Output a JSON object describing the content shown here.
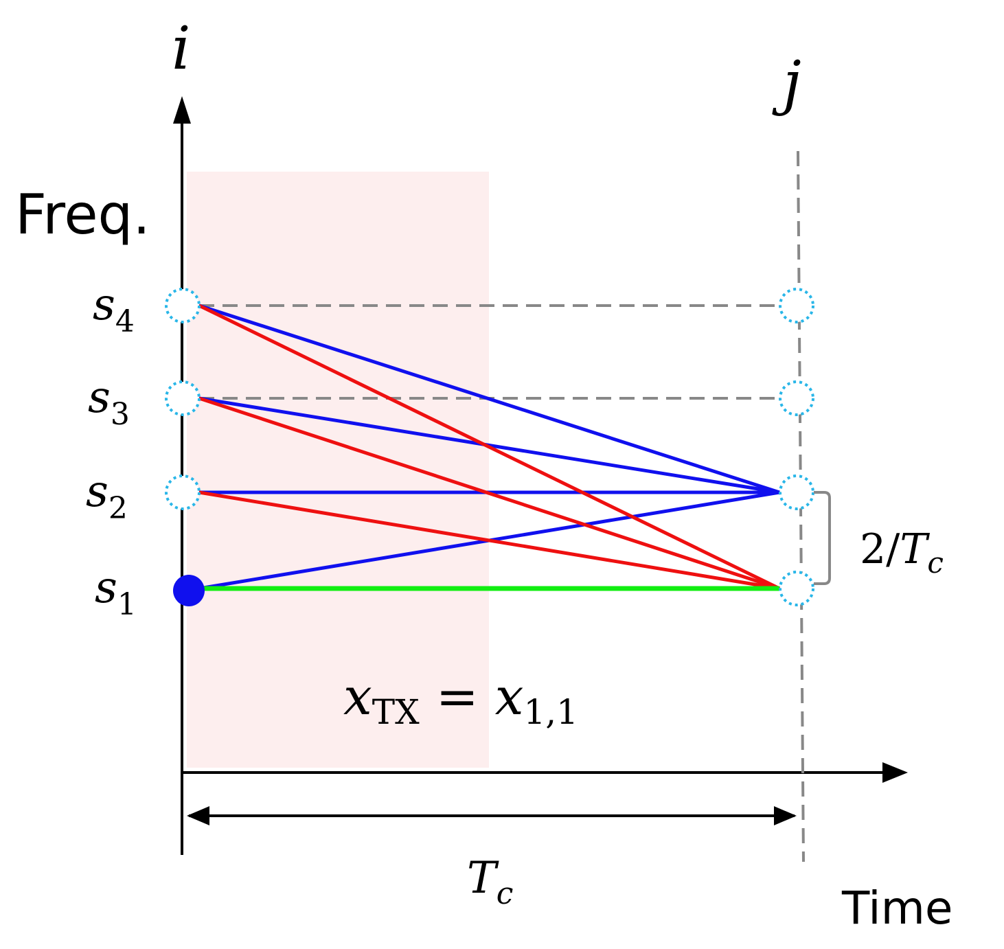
{
  "axis": {
    "top_left": "i",
    "top_right": "j",
    "y_label": "Freq.",
    "x_label": "Time"
  },
  "states": [
    {
      "base": "s",
      "sub": "1"
    },
    {
      "base": "s",
      "sub": "2"
    },
    {
      "base": "s",
      "sub": "3"
    },
    {
      "base": "s",
      "sub": "4"
    }
  ],
  "spacing": {
    "numer": "2/",
    "base": "T",
    "sub": "c"
  },
  "period": {
    "base": "T",
    "sub": "c"
  },
  "equation": {
    "lhs_base": "x",
    "lhs_sub": "TX",
    "op": "=",
    "rhs_base": "x",
    "rhs_sub": "1,1"
  }
}
